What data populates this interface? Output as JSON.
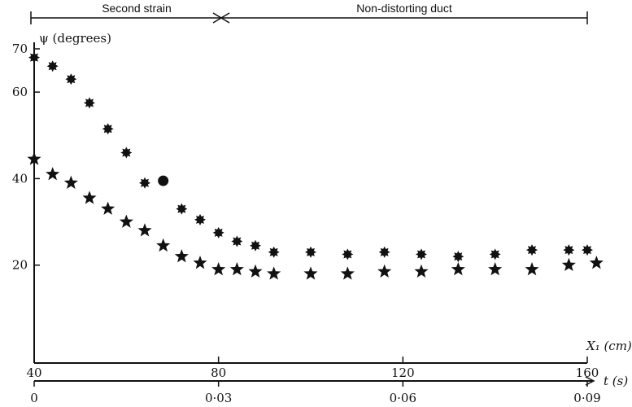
{
  "chart_data": {
    "type": "scatter",
    "title": "",
    "ylabel": "ψ (degrees)",
    "ylim": [
      0,
      70
    ],
    "yticks": [
      20,
      40,
      60,
      70
    ],
    "xlabel": "X₁ (cm)",
    "xlim": [
      40,
      160
    ],
    "xticks": [
      40,
      80,
      120,
      160
    ],
    "secondary_x": {
      "label": "t (s)",
      "ticks": [
        "0",
        "0·03",
        "0·06",
        "0·09"
      ]
    },
    "regions": [
      {
        "label": "Second strain",
        "from": 40,
        "to": 80
      },
      {
        "label": "Non-distorting duct",
        "from": 80,
        "to": 160
      }
    ],
    "grid": false,
    "series": [
      {
        "marker": "asterisk",
        "x": [
          40,
          44,
          48,
          52,
          56,
          60,
          64,
          72,
          76,
          80,
          84,
          88,
          92,
          100,
          108,
          116,
          124,
          132,
          140,
          148,
          156,
          160
        ],
        "y": [
          68,
          66,
          63,
          57.5,
          51.5,
          46,
          39,
          33,
          30.5,
          27.5,
          25.5,
          24.5,
          23,
          23,
          22.5,
          23,
          22.5,
          22,
          22.5,
          23.5,
          23.5,
          23.5
        ]
      },
      {
        "marker": "star",
        "x": [
          40,
          44,
          48,
          52,
          56,
          60,
          64,
          68,
          72,
          76,
          80,
          84,
          88,
          92,
          100,
          108,
          116,
          124,
          132,
          140,
          148,
          156,
          162
        ],
        "y": [
          44.5,
          41,
          39,
          35.5,
          33,
          30,
          28,
          24.5,
          22,
          20.5,
          19,
          19,
          18.5,
          18,
          18,
          18,
          18.5,
          18.5,
          19,
          19,
          19,
          20,
          20.5
        ]
      },
      {
        "marker": "dot",
        "x": [
          68
        ],
        "y": [
          39.5
        ]
      }
    ]
  }
}
